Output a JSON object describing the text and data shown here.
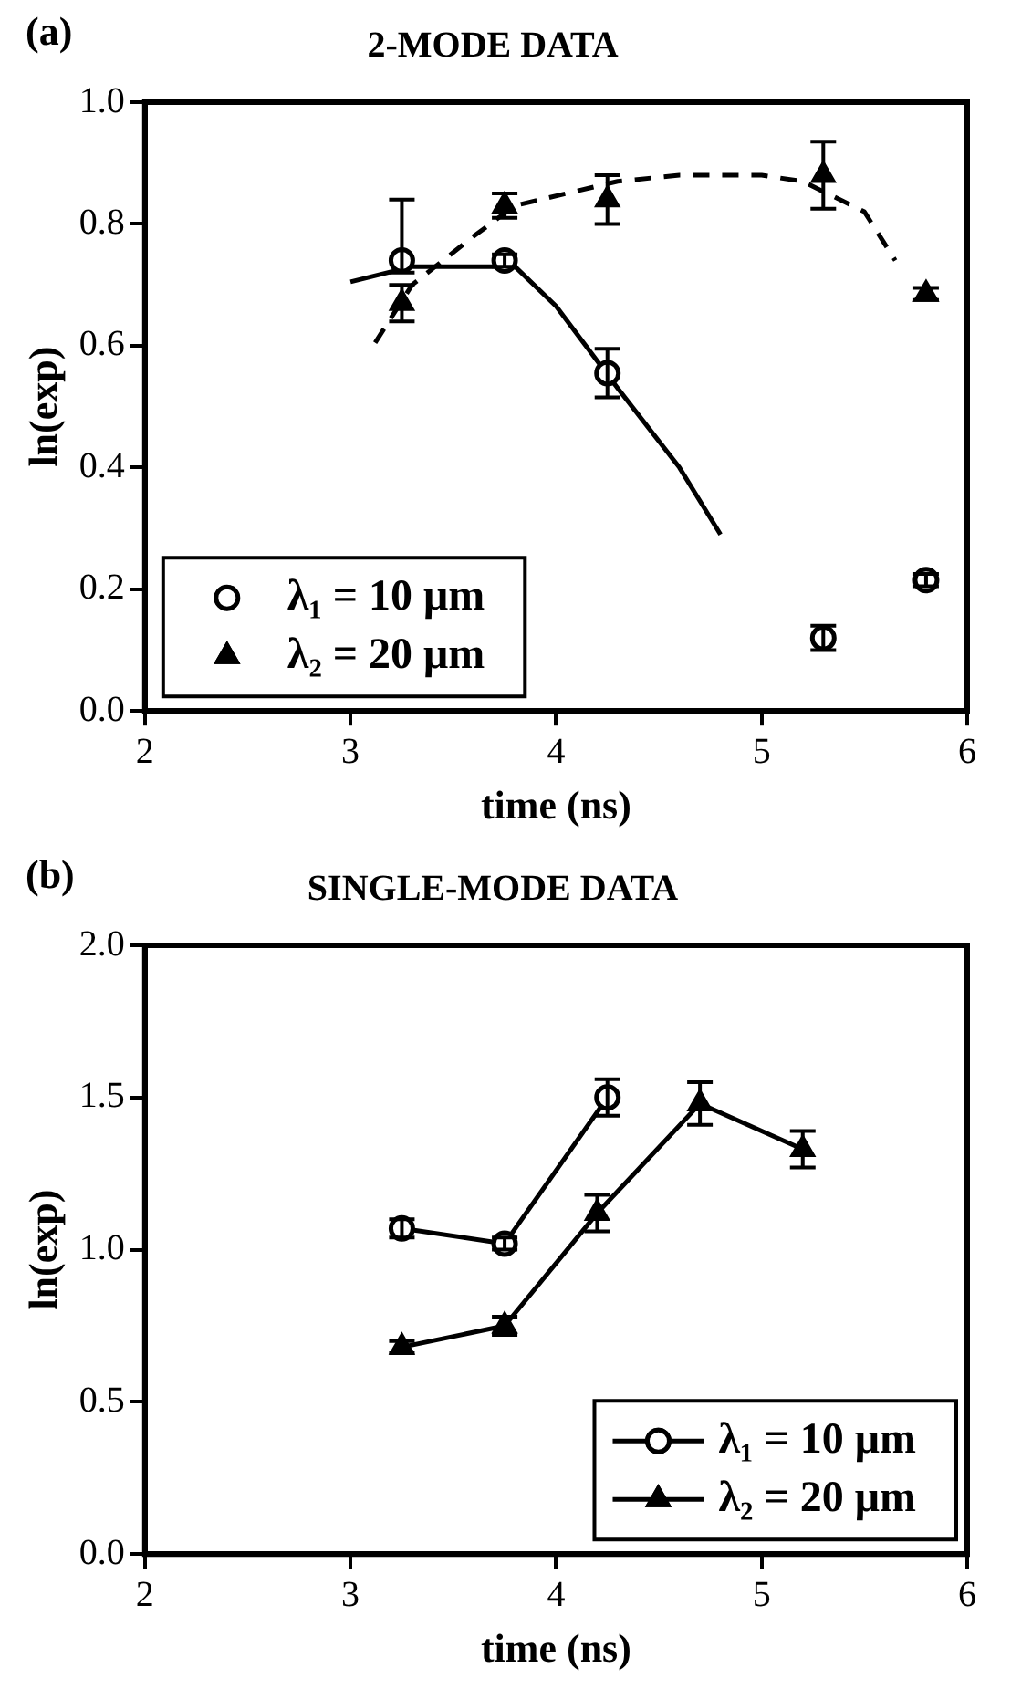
{
  "chart_data": [
    {
      "type": "scatter",
      "title": "2-MODE DATA",
      "annotations": [
        "(a)"
      ],
      "xlabel": "time (ns)",
      "ylabel": "ln(exp)",
      "xlim": [
        2,
        6
      ],
      "xticks": [
        2,
        3,
        4,
        5,
        6
      ],
      "ylim": [
        0,
        1
      ],
      "yticks": [
        {
          "value": 0,
          "label": "0.0"
        },
        {
          "value": 0.2,
          "label": "0.2"
        },
        {
          "value": 0.4,
          "label": "0.4"
        },
        {
          "value": 0.6,
          "label": "0.6"
        },
        {
          "value": 0.8,
          "label": "0.8"
        },
        {
          "value": 1,
          "label": "1.0"
        }
      ],
      "grid": false,
      "legend": "bottom left",
      "series": [
        {
          "name": "λ₁ = 10 μm",
          "type": "scatter",
          "marker": "circle",
          "color": "#000000",
          "x": [
            3.25,
            3.75,
            4.25,
            5.3,
            5.8
          ],
          "values": [
            0.74,
            0.74,
            0.555,
            0.12,
            0.215
          ],
          "errors": [
            [
              0.72,
              0.84
            ],
            0.01,
            0.04,
            0.02,
            0.01
          ]
        },
        {
          "name": "λ₂ = 20 μm",
          "type": "scatter",
          "marker": "triangle",
          "color": "#000000",
          "x": [
            3.25,
            3.75,
            4.25,
            5.3,
            5.8
          ],
          "values": [
            0.67,
            0.83,
            0.84,
            0.88,
            0.685
          ],
          "errors": [
            0.03,
            0.02,
            0.04,
            0.055,
            0.01
          ]
        },
        {
          "type": "line",
          "marker": "none",
          "line_style": "solid",
          "color": "#000000",
          "x": [
            3.0,
            3.3,
            3.5,
            3.8,
            4.0,
            4.1,
            4.3,
            4.6,
            4.8
          ],
          "values": [
            0.705,
            0.73,
            0.73,
            0.73,
            0.665,
            0.62,
            0.53,
            0.4,
            0.29
          ]
        },
        {
          "type": "line",
          "marker": "none",
          "line_style": "dashed",
          "color": "#000000",
          "x": [
            3.12,
            3.3,
            3.6,
            3.8,
            4.3,
            4.6,
            5.0,
            5.2,
            5.5,
            5.65
          ],
          "values": [
            0.605,
            0.7,
            0.78,
            0.83,
            0.87,
            0.88,
            0.88,
            0.87,
            0.82,
            0.74
          ]
        }
      ]
    },
    {
      "type": "line",
      "title": "SINGLE-MODE DATA",
      "annotations": [
        "(b)"
      ],
      "xlabel": "time (ns)",
      "ylabel": "ln(exp)",
      "xlim": [
        2,
        6
      ],
      "xticks": [
        2,
        3,
        4,
        5,
        6
      ],
      "ylim": [
        0,
        2
      ],
      "yticks": [
        {
          "value": 0,
          "label": "0.0"
        },
        {
          "value": 0.5,
          "label": "0.5"
        },
        {
          "value": 1,
          "label": "1.0"
        },
        {
          "value": 1.5,
          "label": "1.5"
        },
        {
          "value": 2,
          "label": "2.0"
        }
      ],
      "grid": false,
      "legend": "bottom right",
      "series": [
        {
          "name": "λ₁ = 10 μm",
          "marker": "circle",
          "line_style": "solid",
          "color": "#000000",
          "x": [
            3.25,
            3.75,
            4.25
          ],
          "values": [
            1.07,
            1.02,
            1.5
          ],
          "errors": [
            0.03,
            0.02,
            0.06
          ]
        },
        {
          "name": "λ₂ = 20 μm",
          "marker": "triangle",
          "line_style": "solid",
          "color": "#000000",
          "x": [
            3.25,
            3.75,
            4.2,
            4.7,
            5.2
          ],
          "values": [
            0.68,
            0.75,
            1.12,
            1.48,
            1.33
          ],
          "errors": [
            0.02,
            0.03,
            0.06,
            0.07,
            0.06
          ]
        }
      ]
    }
  ]
}
